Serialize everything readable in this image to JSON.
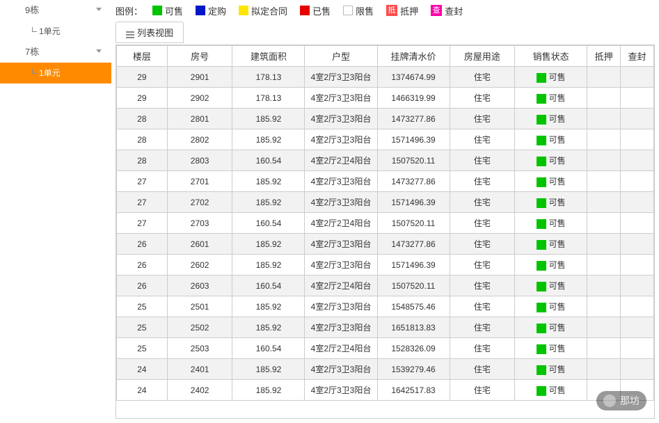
{
  "colors": {
    "available": "#00c400",
    "reserved": "#0018c8",
    "tentative": "#ffe600",
    "sold": "#e60000",
    "restricted_border": "#bbbbbb",
    "mortgage_badge": "#ff4d4d",
    "seize_badge": "#ff00aa",
    "selected_bg": "#ff8a00"
  },
  "sidebar": {
    "items": [
      {
        "label": "9栋",
        "type": "building"
      },
      {
        "label": "1单元",
        "type": "unit"
      },
      {
        "label": "7栋",
        "type": "building"
      },
      {
        "label": "1单元",
        "type": "unit",
        "selected": true
      }
    ]
  },
  "legend": {
    "title": "图例：",
    "items": [
      {
        "label": "可售",
        "color_key": "available"
      },
      {
        "label": "定购",
        "color_key": "reserved"
      },
      {
        "label": "拟定合同",
        "color_key": "tentative"
      },
      {
        "label": "已售",
        "color_key": "sold"
      },
      {
        "label": "限售",
        "border": true
      },
      {
        "label": "抵押",
        "badge": "抵",
        "badge_color_key": "mortgage_badge"
      },
      {
        "label": "查封",
        "badge": "查",
        "badge_color_key": "seize_badge"
      }
    ]
  },
  "tabs": {
    "list_view": "列表视图"
  },
  "table": {
    "columns": [
      {
        "key": "floor",
        "label": "楼层",
        "width": 70
      },
      {
        "key": "room",
        "label": "房号",
        "width": 90
      },
      {
        "key": "area",
        "label": "建筑面积",
        "width": 100
      },
      {
        "key": "layout",
        "label": "户型",
        "width": 100
      },
      {
        "key": "price",
        "label": "挂牌清水价",
        "width": 100
      },
      {
        "key": "usage",
        "label": "房屋用途",
        "width": 90
      },
      {
        "key": "status",
        "label": "销售状态",
        "width": 100
      },
      {
        "key": "mortgage",
        "label": "抵押",
        "width": 46
      },
      {
        "key": "seize",
        "label": "查封",
        "width": 46
      }
    ],
    "rows": [
      {
        "floor": "29",
        "room": "2901",
        "area": "178.13",
        "layout": "4室2厅3卫3阳台",
        "price": "1374674.99",
        "usage": "住宅",
        "status": "可售",
        "status_color_key": "available"
      },
      {
        "floor": "29",
        "room": "2902",
        "area": "178.13",
        "layout": "4室2厅3卫3阳台",
        "price": "1466319.99",
        "usage": "住宅",
        "status": "可售",
        "status_color_key": "available"
      },
      {
        "floor": "28",
        "room": "2801",
        "area": "185.92",
        "layout": "4室2厅3卫3阳台",
        "price": "1473277.86",
        "usage": "住宅",
        "status": "可售",
        "status_color_key": "available"
      },
      {
        "floor": "28",
        "room": "2802",
        "area": "185.92",
        "layout": "4室2厅3卫3阳台",
        "price": "1571496.39",
        "usage": "住宅",
        "status": "可售",
        "status_color_key": "available"
      },
      {
        "floor": "28",
        "room": "2803",
        "area": "160.54",
        "layout": "4室2厅2卫4阳台",
        "price": "1507520.11",
        "usage": "住宅",
        "status": "可售",
        "status_color_key": "available"
      },
      {
        "floor": "27",
        "room": "2701",
        "area": "185.92",
        "layout": "4室2厅3卫3阳台",
        "price": "1473277.86",
        "usage": "住宅",
        "status": "可售",
        "status_color_key": "available"
      },
      {
        "floor": "27",
        "room": "2702",
        "area": "185.92",
        "layout": "4室2厅3卫3阳台",
        "price": "1571496.39",
        "usage": "住宅",
        "status": "可售",
        "status_color_key": "available"
      },
      {
        "floor": "27",
        "room": "2703",
        "area": "160.54",
        "layout": "4室2厅2卫4阳台",
        "price": "1507520.11",
        "usage": "住宅",
        "status": "可售",
        "status_color_key": "available"
      },
      {
        "floor": "26",
        "room": "2601",
        "area": "185.92",
        "layout": "4室2厅3卫3阳台",
        "price": "1473277.86",
        "usage": "住宅",
        "status": "可售",
        "status_color_key": "available"
      },
      {
        "floor": "26",
        "room": "2602",
        "area": "185.92",
        "layout": "4室2厅3卫3阳台",
        "price": "1571496.39",
        "usage": "住宅",
        "status": "可售",
        "status_color_key": "available"
      },
      {
        "floor": "26",
        "room": "2603",
        "area": "160.54",
        "layout": "4室2厅2卫4阳台",
        "price": "1507520.11",
        "usage": "住宅",
        "status": "可售",
        "status_color_key": "available"
      },
      {
        "floor": "25",
        "room": "2501",
        "area": "185.92",
        "layout": "4室2厅3卫3阳台",
        "price": "1548575.46",
        "usage": "住宅",
        "status": "可售",
        "status_color_key": "available"
      },
      {
        "floor": "25",
        "room": "2502",
        "area": "185.92",
        "layout": "4室2厅3卫3阳台",
        "price": "1651813.83",
        "usage": "住宅",
        "status": "可售",
        "status_color_key": "available"
      },
      {
        "floor": "25",
        "room": "2503",
        "area": "160.54",
        "layout": "4室2厅2卫4阳台",
        "price": "1528326.09",
        "usage": "住宅",
        "status": "可售",
        "status_color_key": "available"
      },
      {
        "floor": "24",
        "room": "2401",
        "area": "185.92",
        "layout": "4室2厅3卫3阳台",
        "price": "1539279.46",
        "usage": "住宅",
        "status": "可售",
        "status_color_key": "available"
      },
      {
        "floor": "24",
        "room": "2402",
        "area": "185.92",
        "layout": "4室2厅3卫3阳台",
        "price": "1642517.83",
        "usage": "住宅",
        "status": "可售",
        "status_color_key": "available"
      }
    ]
  },
  "watermark": {
    "text": "那坊"
  }
}
